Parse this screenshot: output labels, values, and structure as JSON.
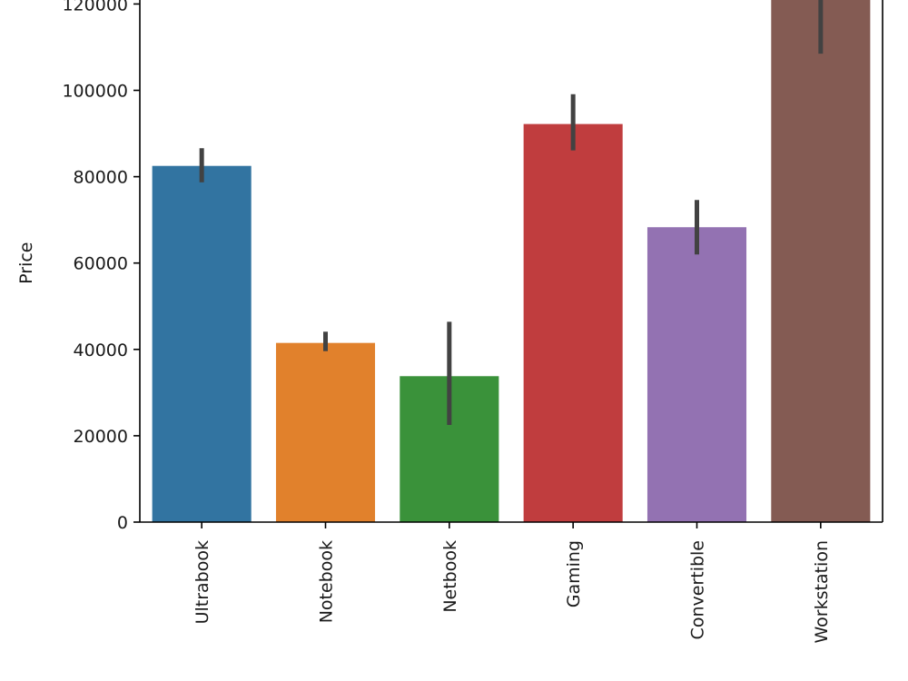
{
  "chart_data": {
    "type": "bar",
    "categories": [
      "Ultrabook",
      "Notebook",
      "Netbook",
      "Gaming",
      "Convertible",
      "Workstation"
    ],
    "values": [
      82500,
      41500,
      33800,
      92200,
      68300,
      121500
    ],
    "error_bars": [
      [
        78700,
        86600
      ],
      [
        39600,
        44100
      ],
      [
        22500,
        46400
      ],
      [
        86100,
        99100
      ],
      [
        62000,
        74600
      ],
      [
        108500,
        134000
      ]
    ],
    "colors": [
      "#3274a1",
      "#e1812c",
      "#3a923a",
      "#c03d3e",
      "#9372b2",
      "#845b53"
    ],
    "error_color": "#424242",
    "title": "",
    "xlabel": "",
    "ylabel": "Price",
    "ylim": [
      0,
      121000
    ],
    "yticks": [
      0,
      20000,
      40000,
      60000,
      80000,
      100000,
      120000
    ],
    "grid": false,
    "legend": "none"
  }
}
